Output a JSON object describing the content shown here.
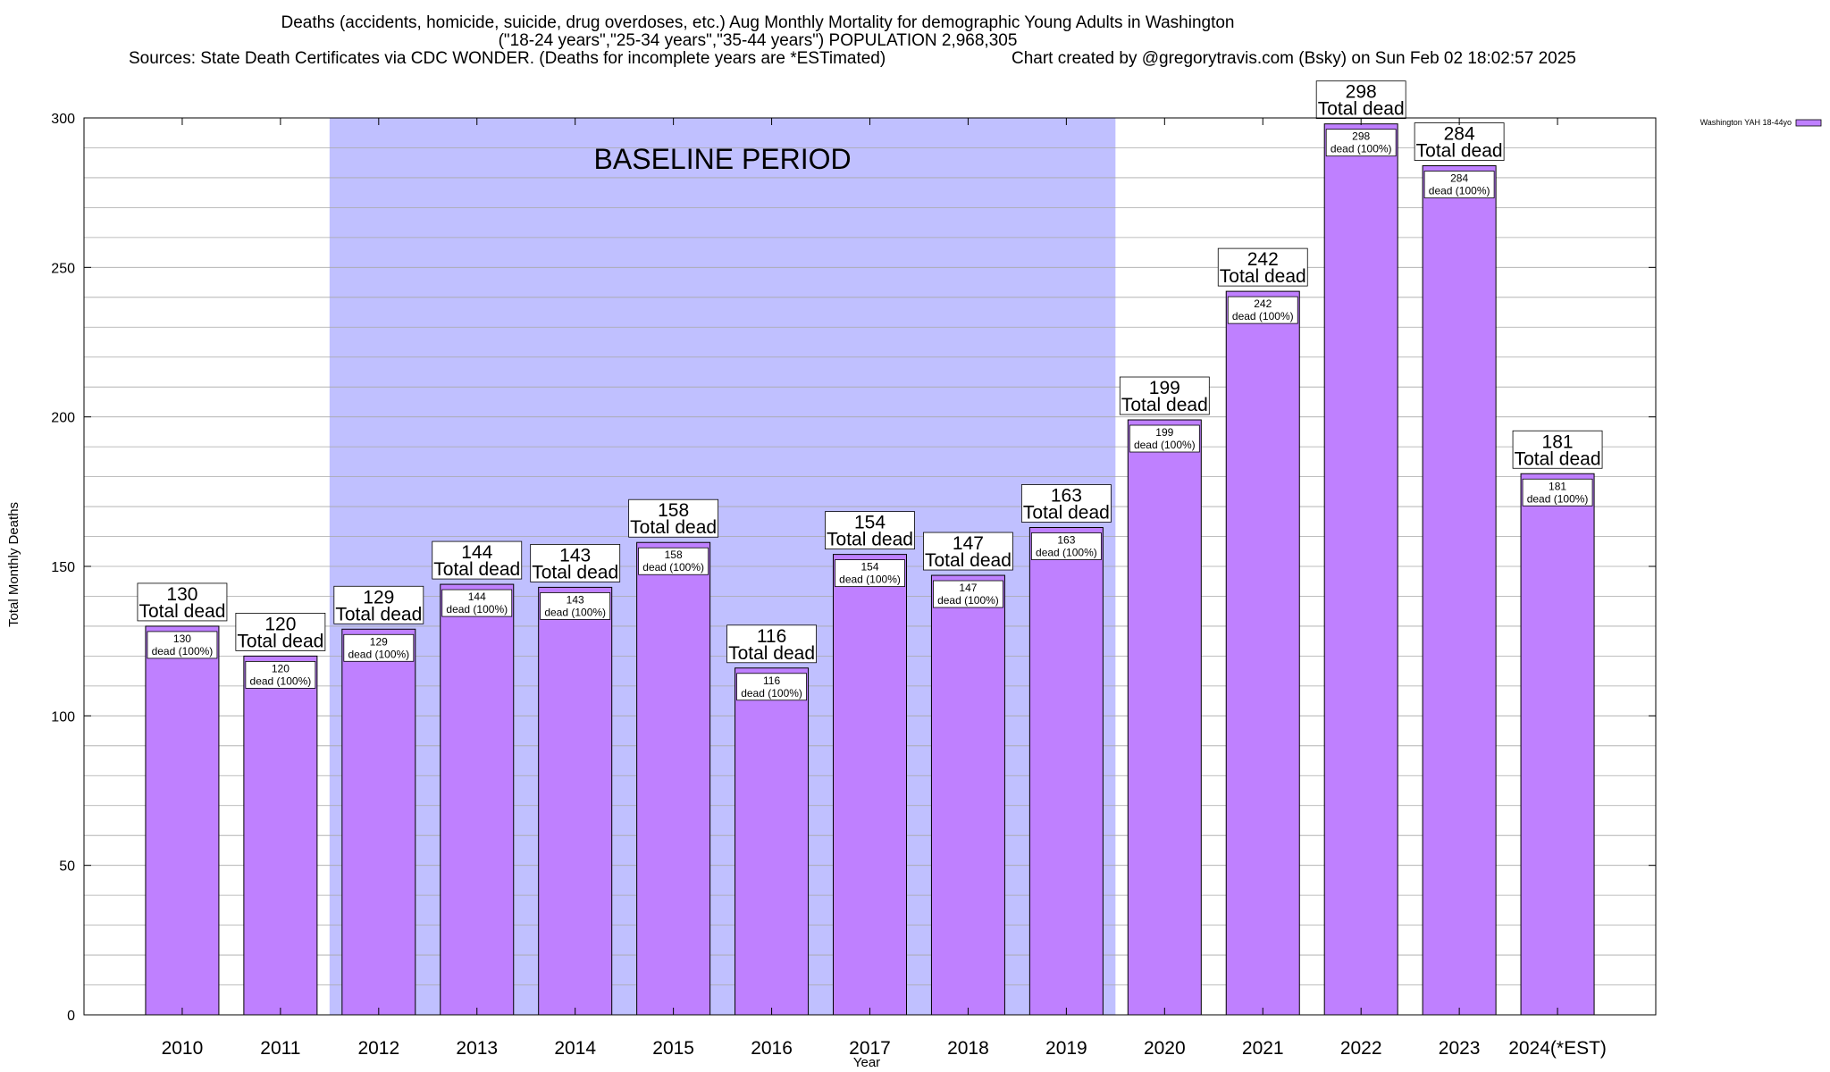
{
  "chart_data": {
    "type": "bar",
    "title_lines": [
      "Deaths (accidents, homicide, suicide, drug overdoses, etc.) Aug Monthly Mortality for demographic Young Adults in Washington",
      "(\"18-24 years\",\"25-34 years\",\"35-44 years\") POPULATION 2,968,305",
      "Sources: State Death Certificates via CDC WONDER. (Deaths for incomplete years are *ESTimated)"
    ],
    "credit": "Chart created by @gregorytravis.com (Bsky) on Sun Feb 02 18:02:57 2025",
    "xlabel": "Year",
    "ylabel": "Total Monthly Deaths",
    "ylim": [
      0,
      300
    ],
    "yticks": [
      0,
      50,
      100,
      150,
      200,
      250,
      300
    ],
    "categories": [
      "2010",
      "2011",
      "2012",
      "2013",
      "2014",
      "2015",
      "2016",
      "2017",
      "2018",
      "2019",
      "2020",
      "2021",
      "2022",
      "2023",
      "2024(*EST)"
    ],
    "series": [
      {
        "name": "Washington YAH 18-44yo",
        "color": "#bf80ff",
        "values": [
          130,
          120,
          129,
          144,
          143,
          158,
          116,
          154,
          147,
          163,
          199,
          242,
          298,
          284,
          181
        ]
      }
    ],
    "annotation_total_suffix": "Total dead",
    "annotation_inner_suffix": "dead (100%)",
    "baseline": {
      "label": "BASELINE PERIOD",
      "start_category": "2012",
      "end_category": "2019",
      "color": "#c0c0ff"
    },
    "grid": true,
    "legend_position": "top-right"
  }
}
